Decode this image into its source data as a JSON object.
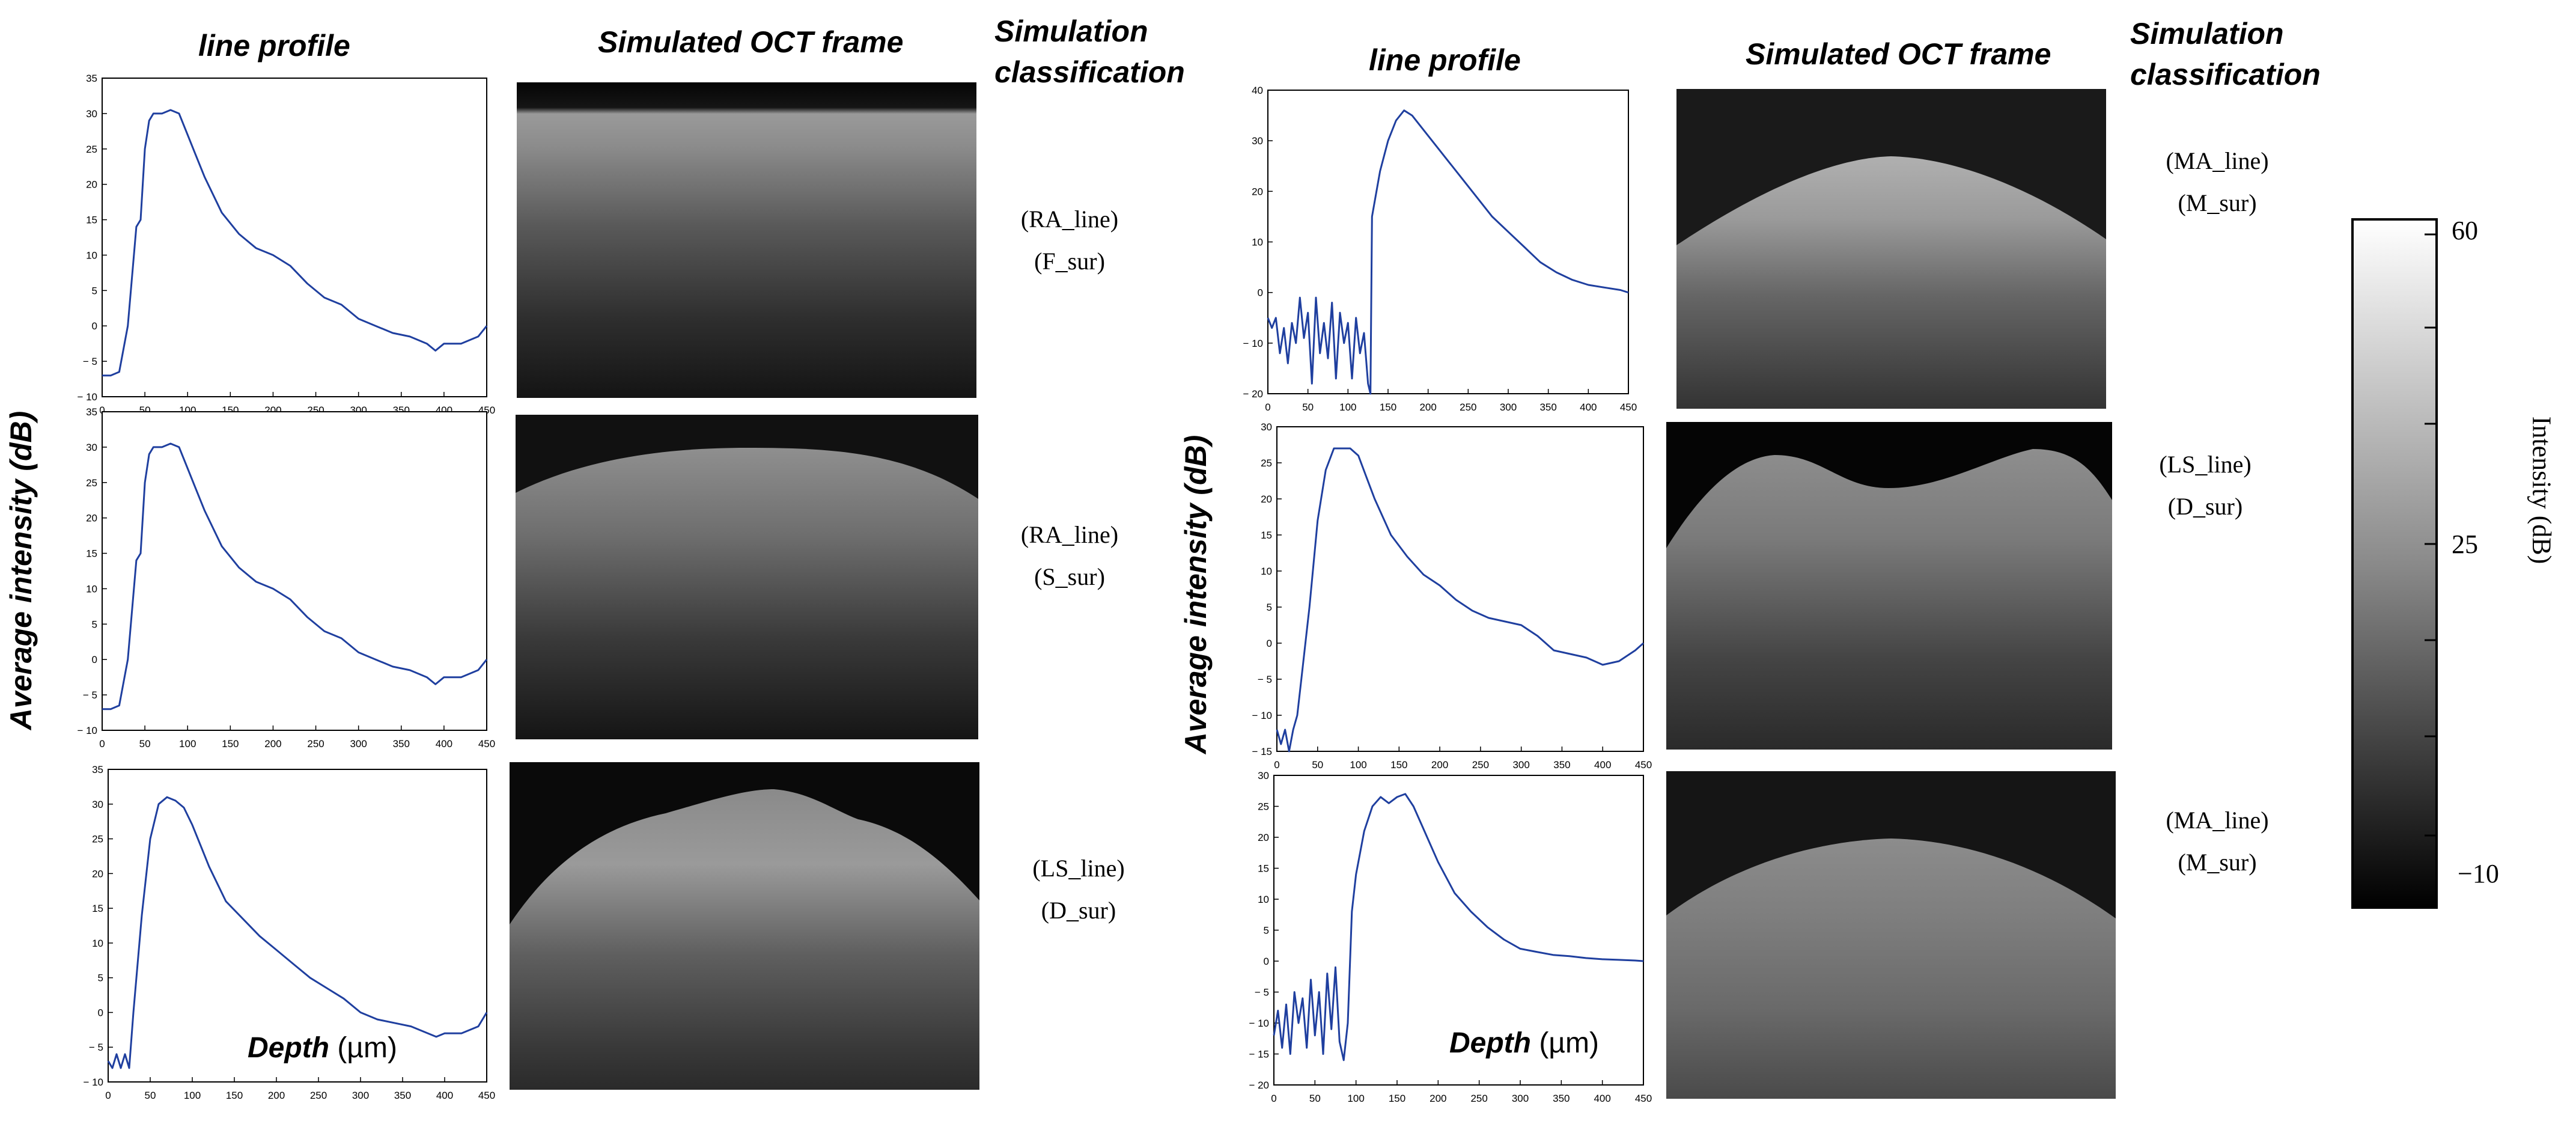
{
  "headers": {
    "left_line_profile": "line profile",
    "left_oct": "Simulated OCT frame",
    "left_sim_1": "Simulation",
    "left_sim_2": "classification",
    "right_line_profile": "line profile",
    "right_oct": "Simulated OCT frame",
    "right_sim_1": "Simulation",
    "right_sim_2": "classification"
  },
  "left_ylabel": "Average intensity (dB)",
  "right_ylabel": "Average intensity (dB)",
  "depth_label": {
    "word": "Depth",
    "unit": " (µm)"
  },
  "colorbar": {
    "title": "Intensity (dB)",
    "ticks": [
      "60",
      "25",
      "−10"
    ]
  },
  "classes": [
    {
      "line": "(RA_line)",
      "sur": "(F_sur)"
    },
    {
      "line": "(RA_line)",
      "sur": "(S_sur)"
    },
    {
      "line": "(LS_line)",
      "sur": "(D_sur)"
    },
    {
      "line": "(MA_line)",
      "sur": "(M_sur)"
    },
    {
      "line": "(LS_line)",
      "sur": "(D_sur)"
    },
    {
      "line": "(MA_line)",
      "sur": "(M_sur)"
    }
  ],
  "chart_data": [
    {
      "type": "line",
      "xlim": [
        0,
        450
      ],
      "ylim": [
        -10,
        35
      ],
      "xticks": [
        0,
        50,
        100,
        150,
        200,
        250,
        300,
        350,
        400,
        450
      ],
      "yticks": [
        -10,
        -5,
        0,
        5,
        10,
        15,
        20,
        25,
        30,
        35
      ],
      "x": [
        0,
        10,
        20,
        30,
        40,
        45,
        50,
        55,
        60,
        70,
        80,
        90,
        100,
        110,
        120,
        140,
        160,
        180,
        200,
        220,
        240,
        260,
        280,
        300,
        320,
        340,
        360,
        380,
        390,
        400,
        420,
        440,
        450
      ],
      "y": [
        -7,
        -7,
        -6.5,
        0,
        14,
        15,
        25,
        29,
        30,
        30,
        30.5,
        30,
        27,
        24,
        21,
        16,
        13,
        11,
        10,
        8.5,
        6,
        4,
        3,
        1,
        0,
        -1,
        -1.5,
        -2.5,
        -3.5,
        -2.5,
        -2.5,
        -1.5,
        0
      ]
    },
    {
      "type": "line",
      "xlim": [
        0,
        450
      ],
      "ylim": [
        -10,
        35
      ],
      "xticks": [
        0,
        50,
        100,
        150,
        200,
        250,
        300,
        350,
        400,
        450
      ],
      "yticks": [
        -10,
        -5,
        0,
        5,
        10,
        15,
        20,
        25,
        30,
        35
      ],
      "x": [
        0,
        10,
        20,
        30,
        40,
        45,
        50,
        55,
        60,
        70,
        80,
        90,
        100,
        110,
        120,
        140,
        160,
        180,
        200,
        220,
        240,
        260,
        280,
        300,
        320,
        340,
        360,
        380,
        390,
        400,
        420,
        440,
        450
      ],
      "y": [
        -7,
        -7,
        -6.5,
        0,
        14,
        15,
        25,
        29,
        30,
        30,
        30.5,
        30,
        27,
        24,
        21,
        16,
        13,
        11,
        10,
        8.5,
        6,
        4,
        3,
        1,
        0,
        -1,
        -1.5,
        -2.5,
        -3.5,
        -2.5,
        -2.5,
        -1.5,
        0
      ]
    },
    {
      "type": "line",
      "xlim": [
        0,
        450
      ],
      "ylim": [
        -10,
        35
      ],
      "xticks": [
        0,
        50,
        100,
        150,
        200,
        250,
        300,
        350,
        400,
        450
      ],
      "yticks": [
        -10,
        -5,
        0,
        5,
        10,
        15,
        20,
        25,
        30,
        35
      ],
      "x": [
        0,
        5,
        10,
        15,
        20,
        25,
        30,
        40,
        50,
        60,
        70,
        80,
        90,
        100,
        110,
        120,
        140,
        160,
        180,
        200,
        220,
        240,
        260,
        280,
        300,
        320,
        340,
        360,
        380,
        390,
        400,
        420,
        440,
        450
      ],
      "y": [
        -7,
        -8,
        -6,
        -8,
        -6,
        -8,
        0,
        14,
        25,
        30,
        31,
        30.5,
        29.5,
        27,
        24,
        21,
        16,
        13.5,
        11,
        9,
        7,
        5,
        3.5,
        2,
        0,
        -1,
        -1.5,
        -2,
        -3,
        -3.5,
        -3,
        -3,
        -2,
        0
      ]
    },
    {
      "type": "line",
      "xlim": [
        0,
        450
      ],
      "ylim": [
        -20,
        40
      ],
      "xticks": [
        0,
        50,
        100,
        150,
        200,
        250,
        300,
        350,
        400,
        450
      ],
      "yticks": [
        -20,
        -10,
        0,
        10,
        20,
        30,
        40
      ],
      "x": [
        0,
        5,
        10,
        15,
        20,
        25,
        30,
        35,
        40,
        45,
        50,
        55,
        60,
        65,
        70,
        75,
        80,
        85,
        90,
        95,
        100,
        105,
        110,
        115,
        120,
        125,
        128,
        130,
        140,
        150,
        160,
        170,
        180,
        200,
        220,
        240,
        260,
        280,
        300,
        320,
        340,
        360,
        380,
        400,
        420,
        440,
        450
      ],
      "y": [
        -5,
        -7,
        -5,
        -12,
        -7,
        -14,
        -6,
        -10,
        -1,
        -9,
        -4,
        -18,
        -1,
        -12,
        -6,
        -13,
        -2,
        -17,
        -4,
        -10,
        -6,
        -17,
        -5,
        -12,
        -8,
        -18,
        -20,
        15,
        24,
        30,
        34,
        36,
        35,
        31,
        27,
        23,
        19,
        15,
        12,
        9,
        6,
        4,
        2.5,
        1.5,
        1,
        0.5,
        0
      ]
    },
    {
      "type": "line",
      "xlim": [
        0,
        450
      ],
      "ylim": [
        -15,
        30
      ],
      "xticks": [
        0,
        50,
        100,
        150,
        200,
        250,
        300,
        350,
        400,
        450
      ],
      "yticks": [
        -15,
        -10,
        -5,
        0,
        5,
        10,
        15,
        20,
        25,
        30
      ],
      "x": [
        0,
        5,
        10,
        15,
        20,
        25,
        30,
        40,
        50,
        60,
        70,
        80,
        90,
        100,
        110,
        120,
        140,
        160,
        180,
        200,
        220,
        240,
        260,
        280,
        300,
        320,
        340,
        360,
        380,
        400,
        420,
        440,
        450
      ],
      "y": [
        -12,
        -14,
        -12,
        -15,
        -12,
        -10,
        -5,
        5,
        17,
        24,
        27,
        27,
        27,
        26,
        23,
        20,
        15,
        12,
        9.5,
        8,
        6,
        4.5,
        3.5,
        3,
        2.5,
        1,
        -1,
        -1.5,
        -2,
        -3,
        -2.5,
        -1,
        0
      ]
    },
    {
      "type": "line",
      "xlim": [
        0,
        450
      ],
      "ylim": [
        -20,
        30
      ],
      "xticks": [
        0,
        50,
        100,
        150,
        200,
        250,
        300,
        350,
        400,
        450
      ],
      "yticks": [
        -20,
        -15,
        -10,
        -5,
        0,
        5,
        10,
        15,
        20,
        25,
        30
      ],
      "x": [
        0,
        5,
        10,
        15,
        20,
        25,
        30,
        35,
        40,
        45,
        50,
        55,
        60,
        65,
        70,
        75,
        80,
        85,
        90,
        95,
        100,
        110,
        120,
        130,
        140,
        150,
        160,
        170,
        180,
        200,
        220,
        240,
        260,
        280,
        300,
        320,
        340,
        360,
        380,
        400,
        420,
        440,
        450
      ],
      "y": [
        -12,
        -8,
        -14,
        -7,
        -15,
        -5,
        -10,
        -6,
        -14,
        -3,
        -12,
        -5,
        -15,
        -2,
        -11,
        -1,
        -13,
        -16,
        -10,
        8,
        14,
        21,
        25,
        26.5,
        25.5,
        26.5,
        27,
        25,
        22,
        16,
        11,
        8,
        5.5,
        3.5,
        2,
        1.5,
        1,
        0.8,
        0.5,
        0.3,
        0.2,
        0.1,
        0
      ]
    }
  ]
}
